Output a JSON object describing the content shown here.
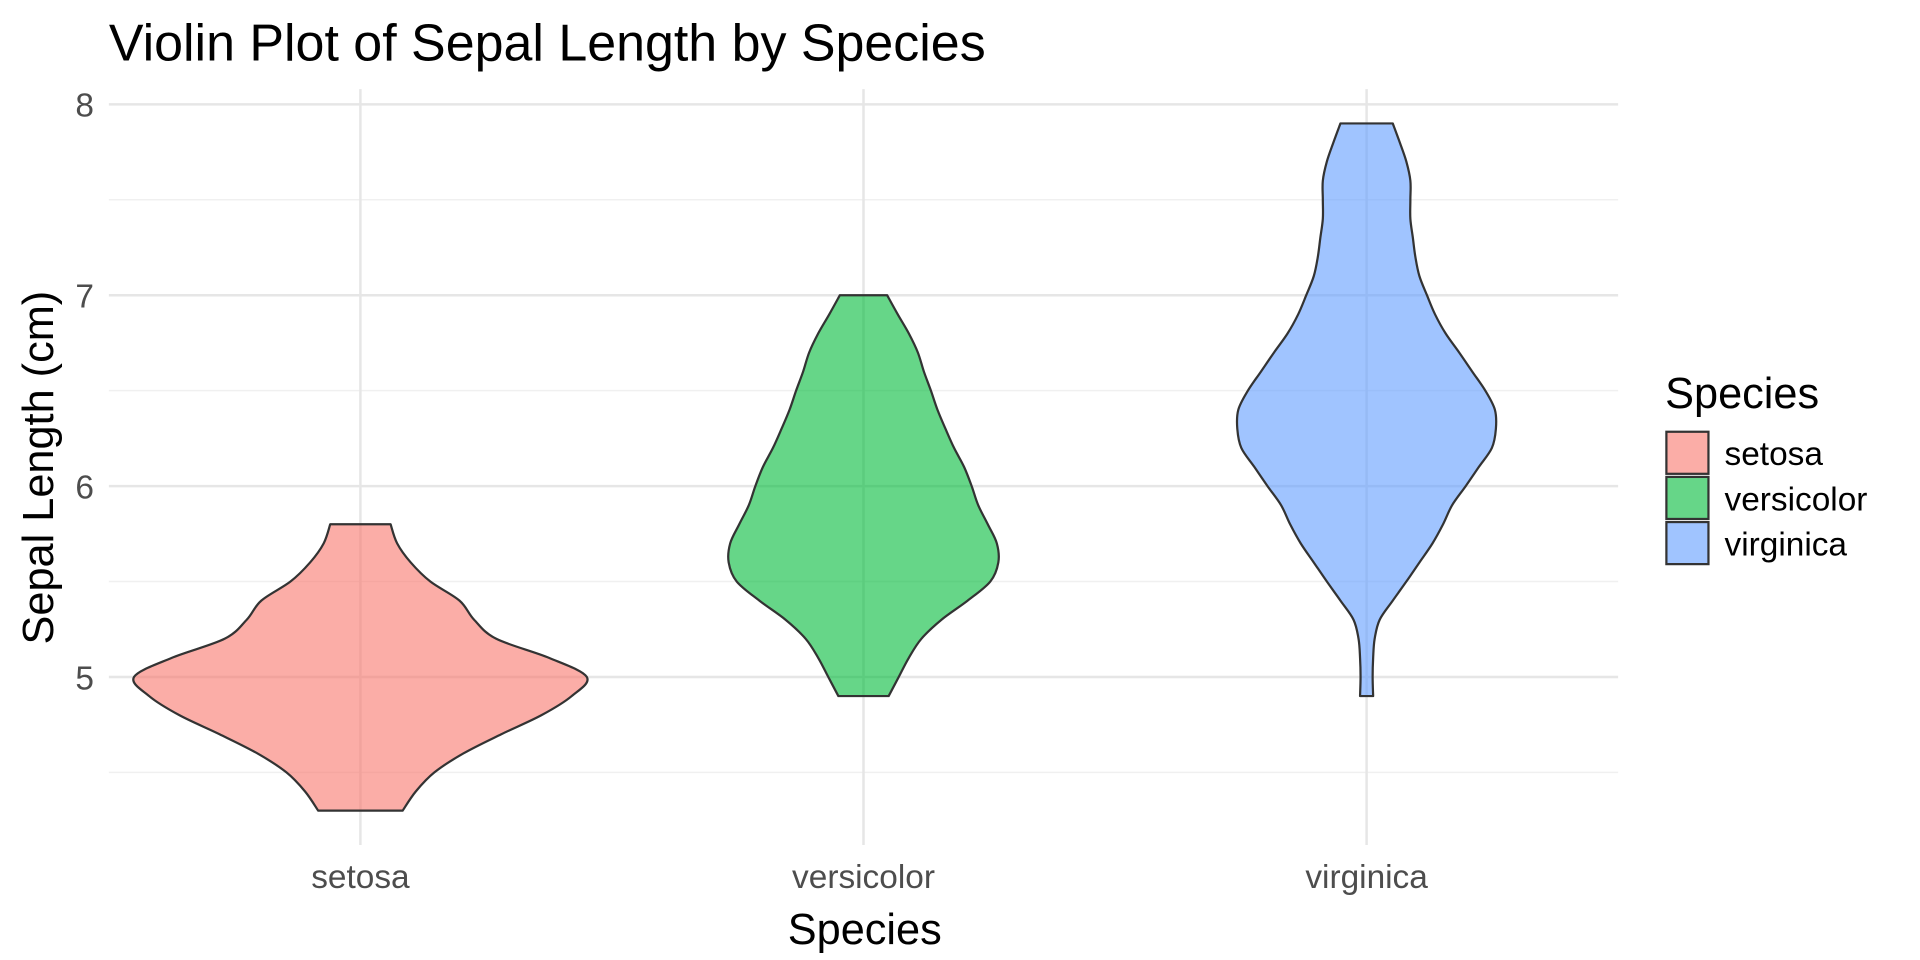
{
  "chart_data": {
    "type": "violin",
    "title": "Violin Plot of Sepal Length by Species",
    "xlabel": "Species",
    "ylabel": "Sepal Length (cm)",
    "categories": [
      "setosa",
      "versicolor",
      "virginica"
    ],
    "ylim": [
      4.12,
      8.08
    ],
    "yticks": [
      5,
      6,
      7,
      8
    ],
    "yminor": [
      4.5,
      5.5,
      6.5,
      7.5
    ],
    "grid": true,
    "legend": {
      "title": "Species",
      "position": "right",
      "entries": [
        "setosa",
        "versicolor",
        "virginica"
      ]
    },
    "colors": {
      "setosa": "#F8766D",
      "versicolor": "#00BA38",
      "virginica": "#619CFF"
    },
    "fill_alpha": 0.6,
    "series": [
      {
        "name": "setosa",
        "range": [
          4.3,
          5.8
        ],
        "profile_y": [
          4.3,
          4.4,
          4.5,
          4.6,
          4.7,
          4.8,
          4.9,
          5.0,
          5.1,
          5.2,
          5.3,
          5.4,
          5.5,
          5.6,
          5.7,
          5.8
        ],
        "relative_halfwidth": [
          0.084,
          0.11,
          0.147,
          0.205,
          0.28,
          0.36,
          0.42,
          0.45,
          0.375,
          0.27,
          0.226,
          0.197,
          0.139,
          0.1,
          0.073,
          0.06
        ]
      },
      {
        "name": "versicolor",
        "range": [
          4.9,
          7.0
        ],
        "profile_y": [
          4.9,
          5.0,
          5.1,
          5.2,
          5.3,
          5.4,
          5.5,
          5.6,
          5.7,
          5.8,
          5.9,
          6.0,
          6.1,
          6.2,
          6.3,
          6.4,
          6.5,
          6.6,
          6.7,
          6.8,
          6.9,
          7.0
        ],
        "relative_halfwidth": [
          0.05,
          0.07,
          0.09,
          0.115,
          0.155,
          0.207,
          0.252,
          0.268,
          0.265,
          0.247,
          0.228,
          0.215,
          0.2,
          0.18,
          0.163,
          0.147,
          0.134,
          0.12,
          0.108,
          0.09,
          0.068,
          0.047
        ]
      },
      {
        "name": "virginica",
        "range": [
          4.9,
          7.9
        ],
        "profile_y": [
          4.9,
          5.0,
          5.1,
          5.2,
          5.3,
          5.4,
          5.5,
          5.6,
          5.7,
          5.8,
          5.9,
          6.0,
          6.1,
          6.2,
          6.3,
          6.4,
          6.5,
          6.6,
          6.7,
          6.8,
          6.9,
          7.0,
          7.1,
          7.2,
          7.3,
          7.4,
          7.5,
          7.6,
          7.7,
          7.8,
          7.9
        ],
        "relative_halfwidth": [
          0.013,
          0.012,
          0.013,
          0.016,
          0.026,
          0.052,
          0.079,
          0.105,
          0.131,
          0.152,
          0.17,
          0.197,
          0.223,
          0.249,
          0.257,
          0.255,
          0.236,
          0.21,
          0.184,
          0.157,
          0.136,
          0.12,
          0.105,
          0.097,
          0.092,
          0.087,
          0.087,
          0.087,
          0.079,
          0.066,
          0.052
        ]
      }
    ]
  }
}
